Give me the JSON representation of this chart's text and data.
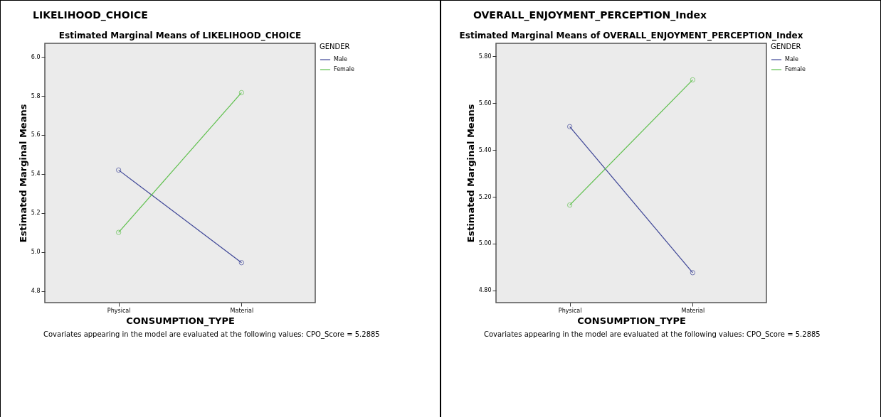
{
  "chart_data": [
    {
      "type": "line",
      "title": "LIKELIHOOD_CHOICE",
      "subtitle": "Estimated Marginal Means of LIKELIHOOD_CHOICE",
      "xlabel": "CONSUMPTION_TYPE",
      "ylabel": "Estimated Marginal Means",
      "legend_title": "GENDER",
      "categories": [
        "Physical",
        "Material"
      ],
      "series": [
        {
          "name": "Male",
          "color": "#3c4496",
          "values": [
            5.42,
            4.945
          ]
        },
        {
          "name": "Female",
          "color": "#5cbf4a",
          "values": [
            5.1,
            5.817
          ]
        }
      ],
      "ylim": [
        4.74,
        6.07
      ],
      "yticks": [
        {
          "value": 4.8,
          "label": "4.8"
        },
        {
          "value": 5,
          "label": "5.0"
        },
        {
          "value": 5.2,
          "label": "5.2"
        },
        {
          "value": 5.4,
          "label": "5.4"
        },
        {
          "value": 5.6,
          "label": "5.6"
        },
        {
          "value": 5.8,
          "label": "5.8"
        },
        {
          "value": 6,
          "label": "6.0"
        }
      ],
      "grid": false,
      "legend": "top right",
      "marker": "circle",
      "line_style": "solid",
      "annotations": [
        "Covariates appearing in the model are evaluated at the following values: CPO_Score = 5.2885"
      ]
    },
    {
      "type": "line",
      "title": "OVERALL_ENJOYMENT_PERCEPTION_Index",
      "subtitle": "Estimated Marginal Means of OVERALL_ENJOYMENT_PERCEPTION_Index",
      "xlabel": "CONSUMPTION_TYPE",
      "ylabel": "Estimated Marginal Means",
      "legend_title": "GENDER",
      "categories": [
        "Physical",
        "Material"
      ],
      "series": [
        {
          "name": "Male",
          "color": "#3c4496",
          "values": [
            5.5,
            4.876
          ]
        },
        {
          "name": "Female",
          "color": "#5cbf4a",
          "values": [
            5.165,
            5.7
          ]
        }
      ],
      "ylim": [
        4.748,
        5.856
      ],
      "yticks": [
        {
          "value": 4.8,
          "label": "4.80"
        },
        {
          "value": 5,
          "label": "5.00"
        },
        {
          "value": 5.2,
          "label": "5.20"
        },
        {
          "value": 5.4,
          "label": "5.40"
        },
        {
          "value": 5.6,
          "label": "5.60"
        },
        {
          "value": 5.8,
          "label": "5.80"
        }
      ],
      "grid": false,
      "legend": "top right",
      "marker": "circle",
      "line_style": "solid",
      "annotations": [
        "Covariates appearing in the model are evaluated at the following values: CPO_Score = 5.2885"
      ]
    }
  ]
}
